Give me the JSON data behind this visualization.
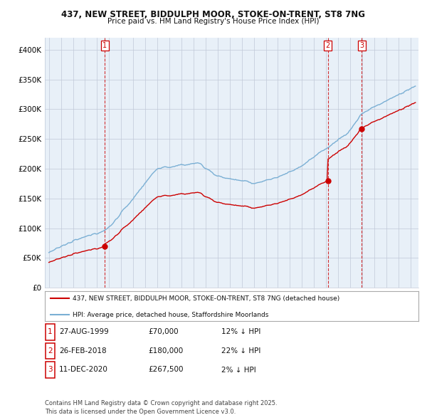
{
  "title_line1": "437, NEW STREET, BIDDULPH MOOR, STOKE-ON-TRENT, ST8 7NG",
  "title_line2": "Price paid vs. HM Land Registry's House Price Index (HPI)",
  "ylim": [
    0,
    420000
  ],
  "yticks": [
    0,
    50000,
    100000,
    150000,
    200000,
    250000,
    300000,
    350000,
    400000
  ],
  "ytick_labels": [
    "£0",
    "£50K",
    "£100K",
    "£150K",
    "£200K",
    "£250K",
    "£300K",
    "£350K",
    "£400K"
  ],
  "sale_prices": [
    70000,
    180000,
    267500
  ],
  "sale_labels": [
    "1",
    "2",
    "3"
  ],
  "legend_label_red": "437, NEW STREET, BIDDULPH MOOR, STOKE-ON-TRENT, ST8 7NG (detached house)",
  "legend_label_blue": "HPI: Average price, detached house, Staffordshire Moorlands",
  "table_rows": [
    [
      "1",
      "27-AUG-1999",
      "£70,000",
      "12% ↓ HPI"
    ],
    [
      "2",
      "26-FEB-2018",
      "£180,000",
      "22% ↓ HPI"
    ],
    [
      "3",
      "11-DEC-2020",
      "£267,500",
      "2% ↓ HPI"
    ]
  ],
  "footer": "Contains HM Land Registry data © Crown copyright and database right 2025.\nThis data is licensed under the Open Government Licence v3.0.",
  "red_color": "#cc0000",
  "blue_color": "#7aafd4",
  "chart_bg": "#e8f0f8",
  "grid_color": "#c0c8d8",
  "box_bg": "#ffffff"
}
